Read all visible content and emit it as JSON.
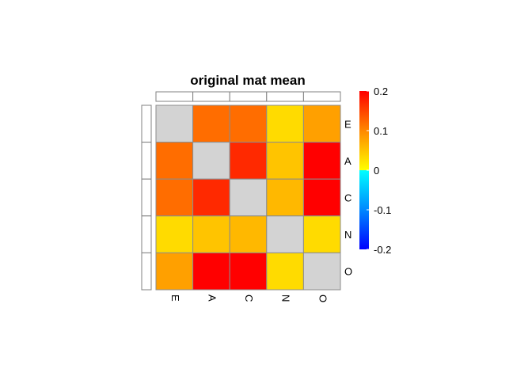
{
  "chart_data": {
    "type": "heatmap",
    "title": "original mat mean",
    "rows": [
      "E",
      "A",
      "C",
      "N",
      "O"
    ],
    "columns": [
      "E",
      "A",
      "C",
      "N",
      "O"
    ],
    "values": [
      [
        null,
        0.12,
        0.12,
        0.03,
        0.08
      ],
      [
        0.12,
        null,
        0.17,
        0.05,
        0.2
      ],
      [
        0.12,
        0.17,
        null,
        0.06,
        0.2
      ],
      [
        0.03,
        0.05,
        0.06,
        null,
        0.03
      ],
      [
        0.08,
        0.2,
        0.2,
        0.03,
        null
      ]
    ],
    "missing_color": "#d3d3d3",
    "color_scale": {
      "min": -0.2,
      "max": 0.2,
      "stops": [
        {
          "value": -0.2,
          "color": "#0000ff"
        },
        {
          "value": -0.1,
          "color": "#0088ff"
        },
        {
          "value": 0.0,
          "color": "#00ffff"
        },
        {
          "value": 0.0,
          "color": "#ffff00"
        },
        {
          "value": 0.1,
          "color": "#ff8800"
        },
        {
          "value": 0.2,
          "color": "#ff0000"
        }
      ],
      "ticks": [
        0.2,
        0.1,
        0,
        -0.1,
        -0.2
      ],
      "tick_labels": [
        "0.2",
        "0.1",
        "0",
        "-0.1",
        "-0.2"
      ]
    }
  }
}
